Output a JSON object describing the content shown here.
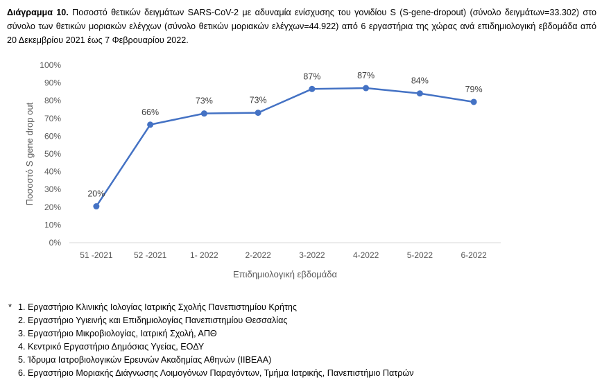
{
  "caption": {
    "label": "Διάγραμμα 10.",
    "text": " Ποσοστό θετικών δειγμάτων SARS-CoV-2 με αδυναμία ενίσχυσης του γονιδίου S (S-gene-dropout) (σύνολο δειγμάτων=33.302) στο σύνολο των θετικών μοριακών ελέγχων (σύνολο θετικών μοριακών ελέγχων=44.922) από 6 εργαστήρια της χώρας ανά επιδημιολογική εβδομάδα από 20 Δεκεμβρίου 2021 έως 7 Φεβρουαρίου 2022."
  },
  "chart_data": {
    "type": "line",
    "title": "",
    "xlabel": "Επιδημιολογική εβδομάδα",
    "ylabel": "Ποσοστό S gene drop out",
    "categories": [
      "51 -2021",
      "52 -2021",
      "1- 2022",
      "2-2022",
      "3-2022",
      "4-2022",
      "5-2022",
      "6-2022"
    ],
    "values": [
      20.5,
      66.5,
      72.8,
      73.2,
      86.6,
      87.1,
      84.1,
      79.3
    ],
    "data_labels": [
      "20%",
      "66%",
      "73%",
      "73%",
      "87%",
      "87%",
      "84%",
      "79%"
    ],
    "ylim": [
      0,
      100
    ],
    "yticks": [
      "0%",
      "10%",
      "20%",
      "30%",
      "40%",
      "50%",
      "60%",
      "70%",
      "80%",
      "90%",
      "100%"
    ],
    "grid": false,
    "legend": "none",
    "line_color": "#4472C4"
  },
  "notes": {
    "marker": "*",
    "items": [
      "1. Εργαστήριο Κλινικής Ιολογίας Ιατρικής Σχολής Πανεπιστημίου Κρήτης",
      "2. Εργαστήριο Υγιεινής και Επιδημιολογίας Πανεπιστημίου Θεσσαλίας",
      "3. Εργαστήριο Μικροβιολογίας, Ιατρική Σχολή, ΑΠΘ",
      "4. Κεντρικό Εργαστήριο Δημόσιας Υγείας, ΕΟΔΥ",
      "5. Ίδρυμα Ιατροβιολογικών Ερευνών Ακαδημίας Αθηνών (IIBEAA)",
      "6. Εργαστήριο Μοριακής Διάγνωσης Λοιμογόνων Παραγόντων, Τμήμα Ιατρικής, Πανεπιστήμιο Πατρών"
    ]
  }
}
